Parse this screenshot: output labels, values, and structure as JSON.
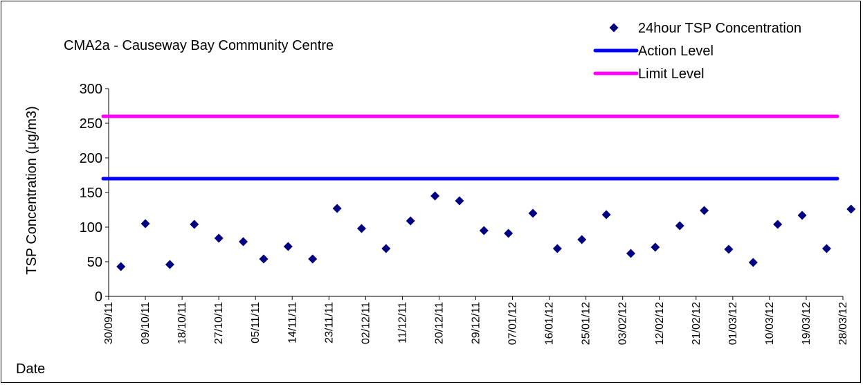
{
  "chart_data": {
    "type": "scatter",
    "title": "CMA2a - Causeway Bay Community Centre",
    "xlabel": "Date",
    "ylabel": "TSP Concentration (μg/m3)",
    "ylim": [
      0,
      300
    ],
    "yticks": [
      0,
      50,
      100,
      150,
      200,
      250,
      300
    ],
    "xlim": [
      "2011-09-30",
      "2012-03-28"
    ],
    "xtick_labels": [
      "30/09/11",
      "09/10/11",
      "18/10/11",
      "27/10/11",
      "05/11/11",
      "14/11/11",
      "23/11/11",
      "02/12/11",
      "11/12/11",
      "20/12/11",
      "29/12/11",
      "07/01/12",
      "16/01/12",
      "25/01/12",
      "03/02/12",
      "12/02/12",
      "21/02/12",
      "01/03/12",
      "10/03/12",
      "19/03/12",
      "28/03/12"
    ],
    "grid": false,
    "legend_position": "top-right",
    "series": [
      {
        "name": "24hour TSP Concentration",
        "color": "#000080",
        "marker": "diamond",
        "points": [
          {
            "x": "2011-10-03",
            "y": 43
          },
          {
            "x": "2011-10-09",
            "y": 105
          },
          {
            "x": "2011-10-15",
            "y": 46
          },
          {
            "x": "2011-10-21",
            "y": 104
          },
          {
            "x": "2011-10-27",
            "y": 84
          },
          {
            "x": "2011-11-02",
            "y": 79
          },
          {
            "x": "2011-11-07",
            "y": 54
          },
          {
            "x": "2011-11-13",
            "y": 72
          },
          {
            "x": "2011-11-19",
            "y": 54
          },
          {
            "x": "2011-11-25",
            "y": 127
          },
          {
            "x": "2011-12-01",
            "y": 98
          },
          {
            "x": "2011-12-07",
            "y": 69
          },
          {
            "x": "2011-12-13",
            "y": 109
          },
          {
            "x": "2011-12-19",
            "y": 145
          },
          {
            "x": "2011-12-25",
            "y": 138
          },
          {
            "x": "2011-12-31",
            "y": 95
          },
          {
            "x": "2012-01-06",
            "y": 91
          },
          {
            "x": "2012-01-12",
            "y": 120
          },
          {
            "x": "2012-01-18",
            "y": 69
          },
          {
            "x": "2012-01-24",
            "y": 82
          },
          {
            "x": "2012-01-30",
            "y": 118
          },
          {
            "x": "2012-02-05",
            "y": 62
          },
          {
            "x": "2012-02-11",
            "y": 71
          },
          {
            "x": "2012-02-17",
            "y": 102
          },
          {
            "x": "2012-02-23",
            "y": 124
          },
          {
            "x": "2012-02-29",
            "y": 68
          },
          {
            "x": "2012-03-06",
            "y": 49
          },
          {
            "x": "2012-03-12",
            "y": 104
          },
          {
            "x": "2012-03-18",
            "y": 117
          },
          {
            "x": "2012-03-24",
            "y": 69
          },
          {
            "x": "2012-03-30",
            "y": 126
          }
        ]
      }
    ],
    "reference_lines": [
      {
        "name": "Action Level",
        "value": 170,
        "color": "#0000FF"
      },
      {
        "name": "Limit Level",
        "value": 260,
        "color": "#FF00FF"
      }
    ]
  }
}
